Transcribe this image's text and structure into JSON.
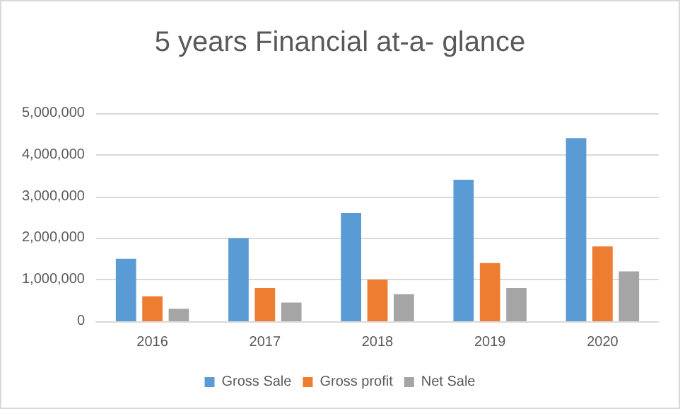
{
  "chart_data": {
    "type": "bar",
    "title": "5 years Financial at-a- glance",
    "categories": [
      "2016",
      "2017",
      "2018",
      "2019",
      "2020"
    ],
    "series": [
      {
        "name": "Gross Sale",
        "color": "#5b9bd5",
        "values": [
          1500000,
          2000000,
          2600000,
          3400000,
          4400000
        ]
      },
      {
        "name": "Gross profit",
        "color": "#ed7d31",
        "values": [
          600000,
          800000,
          1000000,
          1400000,
          1800000
        ]
      },
      {
        "name": "Net Sale",
        "color": "#a5a5a5",
        "values": [
          300000,
          450000,
          650000,
          800000,
          1200000
        ]
      }
    ],
    "ylim": [
      0,
      5000000
    ],
    "yticks": [
      0,
      {
        "value": 1000000,
        "label": "1,000,000"
      },
      {
        "value": 2000000,
        "label": "2,000,000"
      },
      {
        "value": 3000000,
        "label": "3,000,000"
      },
      {
        "value": 4000000,
        "label": "4,000,000"
      },
      {
        "value": 5000000,
        "label": "5,000,000"
      }
    ],
    "grid": "y",
    "legend": "bottom"
  }
}
